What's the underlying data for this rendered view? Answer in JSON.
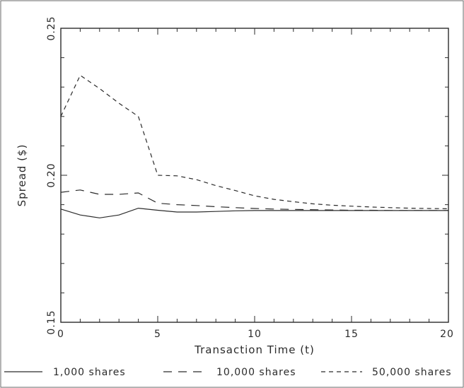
{
  "chart_data": {
    "type": "line",
    "xlabel": "Transaction Time (t)",
    "ylabel": "Spread ($)",
    "xlim": [
      0,
      20
    ],
    "ylim": [
      0.15,
      0.25
    ],
    "x_ticks": [
      0,
      5,
      10,
      15,
      20
    ],
    "x_tick_labels": [
      "0",
      "5",
      "10",
      "15",
      "20"
    ],
    "y_ticks": [
      0.15,
      0.2,
      0.25
    ],
    "y_tick_labels": [
      "0.15",
      "0.20",
      "0.25"
    ],
    "grid": false,
    "legend_position": "bottom",
    "series": [
      {
        "name": "1,000 shares",
        "style": "solid",
        "color": "#2b2b2b",
        "x": [
          0,
          1,
          2,
          3,
          4,
          5,
          6,
          7,
          8,
          9,
          10,
          11,
          12,
          13,
          14,
          15,
          16,
          17,
          18,
          19,
          20
        ],
        "y": [
          0.1885,
          0.1865,
          0.1855,
          0.1865,
          0.1888,
          0.1881,
          0.1875,
          0.1875,
          0.1877,
          0.1879,
          0.188,
          0.188,
          0.188,
          0.188,
          0.188,
          0.188,
          0.188,
          0.188,
          0.188,
          0.188,
          0.188
        ]
      },
      {
        "name": "10,000 shares",
        "style": "long-dash",
        "color": "#2b2b2b",
        "x": [
          0,
          1,
          2,
          3,
          4,
          5,
          6,
          7,
          8,
          9,
          10,
          11,
          12,
          13,
          14,
          15,
          16,
          17,
          18,
          19,
          20
        ],
        "y": [
          0.1942,
          0.195,
          0.1935,
          0.1935,
          0.194,
          0.1905,
          0.19,
          0.1897,
          0.1893,
          0.189,
          0.1887,
          0.1885,
          0.1884,
          0.1883,
          0.1882,
          0.1881,
          0.1881,
          0.188,
          0.188,
          0.188,
          0.188
        ]
      },
      {
        "name": "50,000 shares",
        "style": "short-dash",
        "color": "#2b2b2b",
        "x": [
          0,
          1,
          2,
          3,
          4,
          5,
          6,
          7,
          8,
          9,
          10,
          11,
          12,
          13,
          14,
          15,
          16,
          17,
          18,
          19,
          20
        ],
        "y": [
          0.22,
          0.234,
          0.2295,
          0.2245,
          0.22,
          0.2,
          0.1998,
          0.1985,
          0.1965,
          0.1948,
          0.193,
          0.1918,
          0.191,
          0.1903,
          0.1898,
          0.1895,
          0.1892,
          0.189,
          0.1888,
          0.1887,
          0.1886
        ]
      }
    ]
  }
}
